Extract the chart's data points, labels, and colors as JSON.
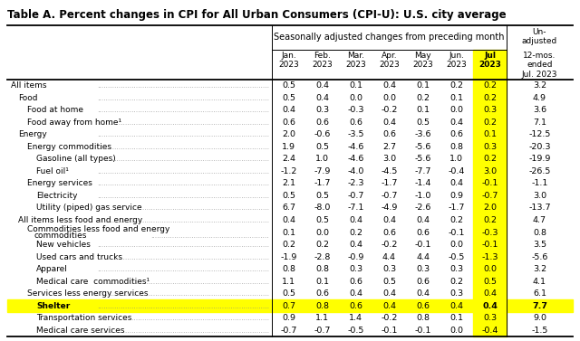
{
  "title": "Table A. Percent changes in CPI for All Urban Consumers (CPI-U): U.S. city average",
  "header_group": "Seasonally adjusted changes from preceding month",
  "col_headers": [
    "Jan.\n2023",
    "Feb.\n2023",
    "Mar.\n2023",
    "Apr.\n2023",
    "May\n2023",
    "Jun.\n2023",
    "Jul\n2023",
    "12-mos.\nended\nJul. 2023"
  ],
  "unadj_header": "Un-\nadjusted",
  "rows": [
    {
      "label": "All items",
      "indent": 0,
      "values": [
        "0.5",
        "0.4",
        "0.1",
        "0.4",
        "0.1",
        "0.2",
        "0.2",
        "3.2"
      ]
    },
    {
      "label": "Food",
      "indent": 1,
      "values": [
        "0.5",
        "0.4",
        "0.0",
        "0.0",
        "0.2",
        "0.1",
        "0.2",
        "4.9"
      ]
    },
    {
      "label": "Food at home",
      "indent": 2,
      "values": [
        "0.4",
        "0.3",
        "-0.3",
        "-0.2",
        "0.1",
        "0.0",
        "0.3",
        "3.6"
      ]
    },
    {
      "label": "Food away from home¹",
      "indent": 2,
      "values": [
        "0.6",
        "0.6",
        "0.6",
        "0.4",
        "0.5",
        "0.4",
        "0.2",
        "7.1"
      ]
    },
    {
      "label": "Energy",
      "indent": 1,
      "values": [
        "2.0",
        "-0.6",
        "-3.5",
        "0.6",
        "-3.6",
        "0.6",
        "0.1",
        "-12.5"
      ]
    },
    {
      "label": "Energy commodities",
      "indent": 2,
      "values": [
        "1.9",
        "0.5",
        "-4.6",
        "2.7",
        "-5.6",
        "0.8",
        "0.3",
        "-20.3"
      ]
    },
    {
      "label": "Gasoline (all types)",
      "indent": 3,
      "values": [
        "2.4",
        "1.0",
        "-4.6",
        "3.0",
        "-5.6",
        "1.0",
        "0.2",
        "-19.9"
      ]
    },
    {
      "label": "Fuel oil¹",
      "indent": 3,
      "values": [
        "-1.2",
        "-7.9",
        "-4.0",
        "-4.5",
        "-7.7",
        "-0.4",
        "3.0",
        "-26.5"
      ]
    },
    {
      "label": "Energy services",
      "indent": 2,
      "values": [
        "2.1",
        "-1.7",
        "-2.3",
        "-1.7",
        "-1.4",
        "0.4",
        "-0.1",
        "-1.1"
      ]
    },
    {
      "label": "Electricity",
      "indent": 3,
      "values": [
        "0.5",
        "0.5",
        "-0.7",
        "-0.7",
        "-1.0",
        "0.9",
        "-0.7",
        "3.0"
      ]
    },
    {
      "label": "Utility (piped) gas service",
      "indent": 3,
      "values": [
        "6.7",
        "-8.0",
        "-7.1",
        "-4.9",
        "-2.6",
        "-1.7",
        "2.0",
        "-13.7"
      ]
    },
    {
      "label": "All items less food and energy",
      "indent": 1,
      "values": [
        "0.4",
        "0.5",
        "0.4",
        "0.4",
        "0.4",
        "0.2",
        "0.2",
        "4.7"
      ]
    },
    {
      "label": "Commodities less food and energy\ncommodities",
      "indent": 2,
      "multiline": true,
      "values": [
        "0.1",
        "0.0",
        "0.2",
        "0.6",
        "0.6",
        "-0.1",
        "-0.3",
        "0.8"
      ]
    },
    {
      "label": "New vehicles",
      "indent": 3,
      "values": [
        "0.2",
        "0.2",
        "0.4",
        "-0.2",
        "-0.1",
        "0.0",
        "-0.1",
        "3.5"
      ]
    },
    {
      "label": "Used cars and trucks",
      "indent": 3,
      "values": [
        "-1.9",
        "-2.8",
        "-0.9",
        "4.4",
        "4.4",
        "-0.5",
        "-1.3",
        "-5.6"
      ]
    },
    {
      "label": "Apparel",
      "indent": 3,
      "values": [
        "0.8",
        "0.8",
        "0.3",
        "0.3",
        "0.3",
        "0.3",
        "0.0",
        "3.2"
      ]
    },
    {
      "label": "Medical care  commodities¹",
      "indent": 3,
      "values": [
        "1.1",
        "0.1",
        "0.6",
        "0.5",
        "0.6",
        "0.2",
        "0.5",
        "4.1"
      ]
    },
    {
      "label": "Services less energy services",
      "indent": 2,
      "values": [
        "0.5",
        "0.6",
        "0.4",
        "0.4",
        "0.4",
        "0.3",
        "0.4",
        "6.1"
      ]
    },
    {
      "label": "Shelter",
      "indent": 3,
      "highlight": true,
      "values": [
        "0.7",
        "0.8",
        "0.6",
        "0.4",
        "0.6",
        "0.4",
        "0.4",
        "7.7"
      ]
    },
    {
      "label": "Transportation services",
      "indent": 3,
      "values": [
        "0.9",
        "1.1",
        "1.4",
        "-0.2",
        "0.8",
        "0.1",
        "0.3",
        "9.0"
      ]
    },
    {
      "label": "Medical care services",
      "indent": 3,
      "values": [
        "-0.7",
        "-0.7",
        "-0.5",
        "-0.1",
        "-0.1",
        "0.0",
        "-0.4",
        "-1.5"
      ]
    }
  ],
  "highlight_color": "#ffff00",
  "bg_color": "#ffffff",
  "border_color": "#000000",
  "text_color": "#000000",
  "dot_color": "#888888"
}
